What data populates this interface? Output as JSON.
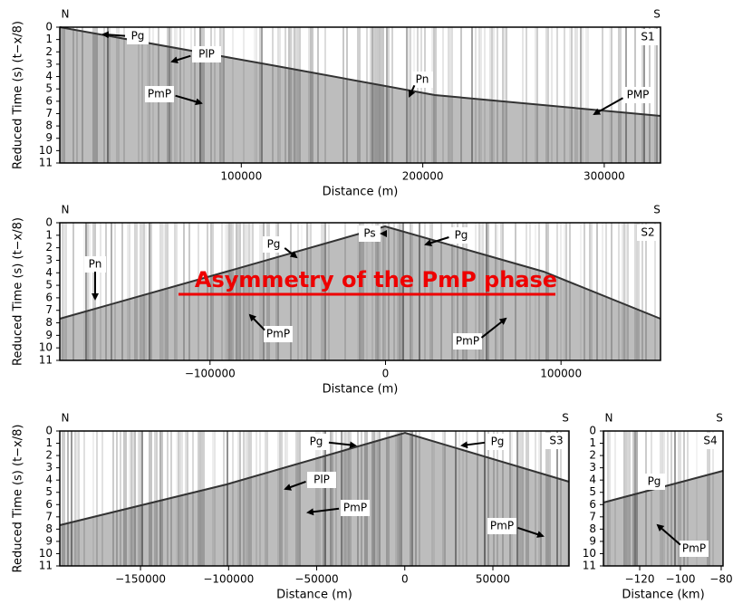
{
  "chart_data": [
    {
      "type": "seismic",
      "panel": "S1",
      "north": "N",
      "south": "S",
      "xlabel": "Distance (m)",
      "ylabel": "Reduced Time (s) (t−x/8)",
      "xlim": [
        0,
        331000
      ],
      "ylim": [
        0,
        11
      ],
      "xticks": [
        {
          "value": 100000,
          "label": "100000"
        },
        {
          "value": 200000,
          "label": "200000"
        },
        {
          "value": 300000,
          "label": "300000"
        }
      ],
      "yticks": [
        0,
        1,
        2,
        3,
        4,
        5,
        6,
        7,
        8,
        9,
        10,
        11
      ],
      "annotations": [
        "Pg",
        "PlP",
        "PmP",
        "Pn",
        "PMP"
      ]
    },
    {
      "type": "seismic",
      "panel": "S2",
      "north": "N",
      "south": "S",
      "xlabel": "Distance (m)",
      "ylabel": "Reduced Time (s) (t−x/8)",
      "xlim": [
        -185600,
        156700
      ],
      "ylim": [
        0,
        11
      ],
      "xticks": [
        {
          "value": -100000,
          "label": "−100000"
        },
        0,
        {
          "value": 100000,
          "label": "100000"
        }
      ],
      "yticks": [
        0,
        1,
        2,
        3,
        4,
        5,
        6,
        7,
        8,
        9,
        10,
        11
      ],
      "annotations": [
        "Ps",
        "Pg",
        "Pg",
        "Pn",
        "PmP",
        "PmP"
      ],
      "highlight": "Asymmetry of the PmP phase"
    },
    {
      "type": "seismic",
      "panel": "S3",
      "north": "N",
      "south": "S",
      "xlabel": "Distance (m)",
      "ylabel": "Reduced Time (s) (t−x/8)",
      "xlim": [
        -195800,
        93200
      ],
      "ylim": [
        0,
        11
      ],
      "xticks": [
        {
          "value": -150000,
          "label": "−150000"
        },
        {
          "value": -100000,
          "label": "−100000"
        },
        {
          "value": -50000,
          "label": "−50000"
        },
        0,
        {
          "value": 50000,
          "label": "50000"
        }
      ],
      "yticks": [
        0,
        1,
        2,
        3,
        4,
        5,
        6,
        7,
        8,
        9,
        10,
        11
      ],
      "annotations": [
        "Pg",
        "Pg",
        "PlP",
        "PmP",
        "PmP"
      ]
    },
    {
      "type": "seismic",
      "panel": "S4",
      "north": "N",
      "south": "S",
      "xlabel": "Distance (km)",
      "xlim": [
        -137.8,
        -79.1
      ],
      "ylim": [
        0,
        11
      ],
      "xticks": [
        {
          "value": -120,
          "label": "−120"
        },
        {
          "value": -100,
          "label": "−100"
        },
        {
          "value": -80,
          "label": "−80"
        }
      ],
      "yticks": [
        0,
        1,
        2,
        3,
        4,
        5,
        6,
        7,
        8,
        9,
        10,
        11
      ],
      "annotations": [
        "Pg",
        "PmP"
      ]
    }
  ]
}
